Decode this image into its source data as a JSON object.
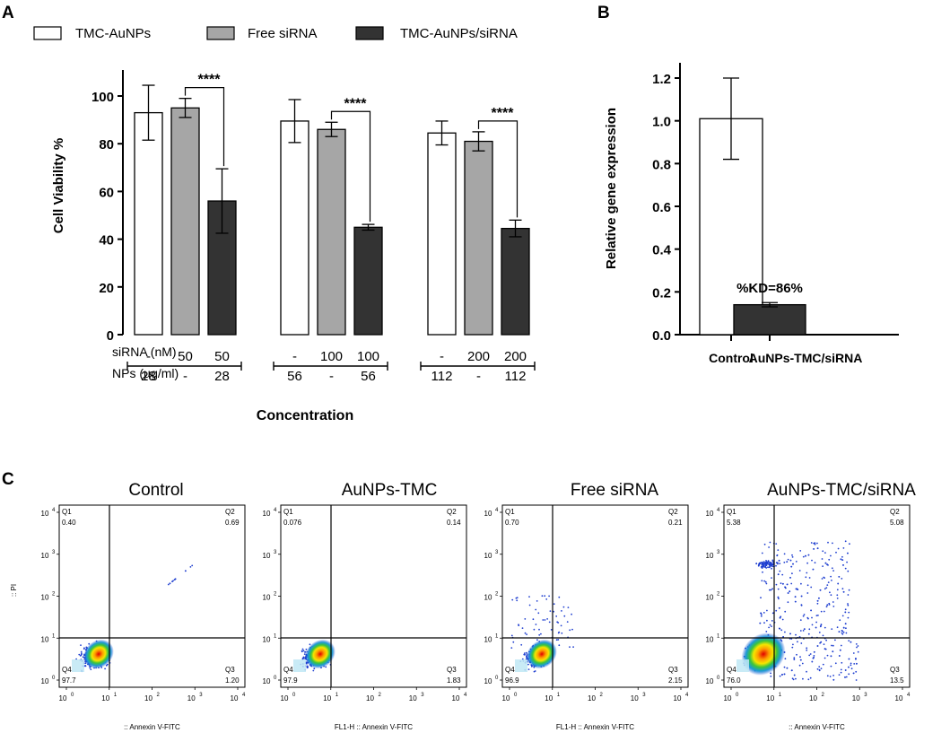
{
  "panel_labels": {
    "a": "A",
    "b": "B",
    "c": "C"
  },
  "colors": {
    "white_bar": "#ffffff",
    "gray_bar": "#a6a6a6",
    "dark_bar": "#333333",
    "axis": "#000000"
  },
  "chart_data": [
    {
      "type": "bar",
      "panel": "A",
      "ylabel": "Cell Viability %",
      "xlabel": "Concentration",
      "ylim": [
        0,
        110
      ],
      "yticks": [
        "0",
        "20",
        "40",
        "60",
        "80",
        "100"
      ],
      "legend": [
        "TMC-AuNPs",
        "Free siRNA",
        "TMC-AuNPs/siRNA"
      ],
      "significance": "****",
      "row_labels": {
        "sirna": "siRNA (nM)",
        "nps": "NPs (µg/ml)"
      },
      "groups": [
        {
          "bars": [
            {
              "series": "TMC-AuNPs",
              "value": 93,
              "err": 11.5,
              "sirna": "-",
              "nps": "28"
            },
            {
              "series": "Free siRNA",
              "value": 95,
              "err": 4,
              "sirna": "50",
              "nps": "-"
            },
            {
              "series": "TMC-AuNPs/siRNA",
              "value": 56,
              "err": 13.5,
              "sirna": "50",
              "nps": "28"
            }
          ]
        },
        {
          "bars": [
            {
              "series": "TMC-AuNPs",
              "value": 89.5,
              "err": 9,
              "sirna": "-",
              "nps": "56"
            },
            {
              "series": "Free siRNA",
              "value": 86,
              "err": 3,
              "sirna": "100",
              "nps": "-"
            },
            {
              "series": "TMC-AuNPs/siRNA",
              "value": 45,
              "err": 1.2,
              "sirna": "100",
              "nps": "56"
            }
          ]
        },
        {
          "bars": [
            {
              "series": "TMC-AuNPs",
              "value": 84.5,
              "err": 5,
              "sirna": "-",
              "nps": "112"
            },
            {
              "series": "Free siRNA",
              "value": 81,
              "err": 4,
              "sirna": "200",
              "nps": "-"
            },
            {
              "series": "TMC-AuNPs/siRNA",
              "value": 44.5,
              "err": 3.5,
              "sirna": "200",
              "nps": "112"
            }
          ]
        }
      ]
    },
    {
      "type": "bar",
      "panel": "B",
      "ylabel": "Relative gene expression",
      "ylim": [
        0,
        1.3
      ],
      "yticks": [
        "0.0",
        "0.2",
        "0.4",
        "0.6",
        "0.8",
        "1.0",
        "1.2"
      ],
      "categories": [
        "Control",
        "AuNPs-TMC/siRNA"
      ],
      "values": [
        1.01,
        0.14
      ],
      "errors": [
        0.19,
        0.01
      ],
      "annotation": "%KD=86%"
    },
    {
      "type": "scatter",
      "panel": "C",
      "subtype": "flow cytometry dot plots",
      "axis_ticks": [
        "10",
        "0",
        "1",
        "2",
        "3",
        "4"
      ],
      "plots": [
        {
          "title": "Control",
          "q1": "0.40",
          "q2": "0.69",
          "q3": "1.20",
          "q4": "97.7",
          "xlabel": ":: Annexin V-FITC",
          "ylabel": ":: PI"
        },
        {
          "title": "AuNPs-TMC",
          "q1": "0.076",
          "q2": "0.14",
          "q3": "1.83",
          "q4": "97.9",
          "xlabel": "FL1-H :: Annexin V-FITC",
          "ylabel": ""
        },
        {
          "title": "Free siRNA",
          "q1": "0.70",
          "q2": "0.21",
          "q3": "2.15",
          "q4": "96.9",
          "xlabel": "FL1-H :: Annexin V-FITC",
          "ylabel": ""
        },
        {
          "title": "AuNPs-TMC/siRNA",
          "q1": "5.38",
          "q2": "5.08",
          "q3": "13.5",
          "q4": "76.0",
          "xlabel": ":: Annexin V-FITC",
          "ylabel": ""
        }
      ],
      "quadrant_prefixes": [
        "Q1",
        "Q2",
        "Q3",
        "Q4"
      ]
    }
  ]
}
